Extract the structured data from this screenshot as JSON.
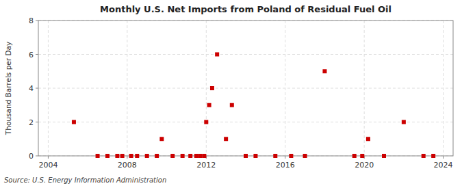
{
  "chart_data": {
    "type": "scatter",
    "title": "Monthly U.S. Net Imports from Poland of Residual Fuel Oil",
    "ylabel": "Thousand Barrels per Day",
    "annotations": [
      "Source: U.S. Energy Information Administration"
    ],
    "x": [
      2005.3,
      2006.5,
      2007.0,
      2007.5,
      2007.75,
      2008.2,
      2008.5,
      2009.0,
      2009.5,
      2009.75,
      2010.3,
      2010.8,
      2011.2,
      2011.5,
      2011.7,
      2011.9,
      2012.0,
      2012.15,
      2012.3,
      2012.55,
      2013.0,
      2013.3,
      2014.0,
      2014.5,
      2015.5,
      2016.3,
      2017.0,
      2018.0,
      2019.5,
      2019.9,
      2020.2,
      2021.0,
      2022.0,
      2023.0,
      2023.5
    ],
    "values": [
      2.0,
      0.0,
      0.0,
      0.0,
      0.0,
      0.0,
      0.0,
      0.0,
      0.0,
      1.0,
      0.0,
      0.0,
      0.0,
      0.0,
      0.0,
      0.0,
      2.0,
      3.0,
      4.0,
      6.0,
      1.0,
      3.0,
      0.0,
      0.0,
      0.0,
      0.0,
      0.0,
      5.0,
      0.0,
      0.0,
      1.0,
      0.0,
      2.0,
      0.0,
      0.0
    ],
    "color": "#cc0000",
    "marker": "square",
    "xlim": [
      2003.5,
      2024.5
    ],
    "ylim": [
      0,
      8
    ],
    "xticks": [
      2004,
      2008,
      2012,
      2016,
      2020,
      2024
    ],
    "yticks": [
      0,
      2,
      4,
      6,
      8
    ],
    "grid": true
  }
}
